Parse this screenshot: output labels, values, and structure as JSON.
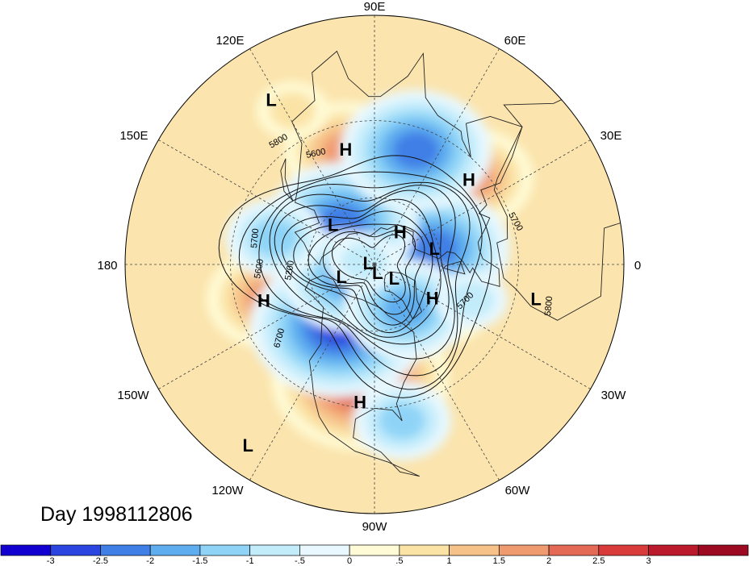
{
  "map": {
    "projection": "north-polar-stereographic",
    "shading": "anomaly",
    "contours": "geopotential-height",
    "lon_labels": [
      {
        "lon": 90,
        "text": "90E"
      },
      {
        "lon": 60,
        "text": "60E"
      },
      {
        "lon": 30,
        "text": "30E"
      },
      {
        "lon": 0,
        "text": "0"
      },
      {
        "lon": -30,
        "text": "30W"
      },
      {
        "lon": -60,
        "text": "60W"
      },
      {
        "lon": -90,
        "text": "90W"
      },
      {
        "lon": -120,
        "text": "120W"
      },
      {
        "lon": -150,
        "text": "150W"
      },
      {
        "lon": 180,
        "text": "180"
      },
      {
        "lon": 150,
        "text": "150E"
      },
      {
        "lon": 120,
        "text": "120E"
      }
    ],
    "latitude_circles": [
      30,
      60
    ],
    "meridian_step_deg": 30,
    "pressure_systems": [
      {
        "type": "L",
        "text": "L",
        "lon": 122,
        "lat": 14
      },
      {
        "type": "H",
        "text": "H",
        "lon": 104,
        "lat": 39
      },
      {
        "type": "H",
        "text": "H",
        "lon": 42,
        "lat": 36
      },
      {
        "type": "H",
        "text": "H",
        "lon": 52,
        "lat": 71
      },
      {
        "type": "L",
        "text": "L",
        "lon": 136,
        "lat": 64
      },
      {
        "type": "L",
        "text": "L",
        "lon": 15,
        "lat": 62
      },
      {
        "type": "L",
        "text": "L",
        "lon": 165,
        "lat": 87
      },
      {
        "type": "L",
        "text": "L",
        "lon": -160,
        "lat": 74
      },
      {
        "type": "L",
        "text": "L",
        "lon": -35,
        "lat": 79
      },
      {
        "type": "L",
        "text": "L",
        "lon": -70,
        "lat": 86
      },
      {
        "type": "H",
        "text": "H",
        "lon": -162,
        "lat": 40
      },
      {
        "type": "H",
        "text": "H",
        "lon": -30,
        "lat": 60
      },
      {
        "type": "H",
        "text": "H",
        "lon": -96,
        "lat": 32
      },
      {
        "type": "L",
        "text": "L",
        "lon": -125,
        "lat": 7
      },
      {
        "type": "L",
        "text": "L",
        "lon": -12,
        "lat": 23
      }
    ],
    "contour_labels": [
      "5800",
      "5600",
      "5700",
      "5600",
      "5200",
      "6700",
      "5700",
      "5800",
      "5700"
    ],
    "anomaly_centers": [
      {
        "lon": -97,
        "lat": 40,
        "value": 2.6
      },
      {
        "lon": -162,
        "lat": 42,
        "value": 1.9
      },
      {
        "lon": 104,
        "lat": 40,
        "value": 1.6
      },
      {
        "lon": 42,
        "lat": 35,
        "value": 1.8
      },
      {
        "lon": 52,
        "lat": 72,
        "value": 1.5
      },
      {
        "lon": -30,
        "lat": 60,
        "value": 1.7
      },
      {
        "lon": 118,
        "lat": 20,
        "value": 1.0
      },
      {
        "lon": -120,
        "lat": 58,
        "value": -2.7
      },
      {
        "lon": 15,
        "lat": 62,
        "value": -2.2
      },
      {
        "lon": 128,
        "lat": 66,
        "value": -2.2
      },
      {
        "lon": -150,
        "lat": 75,
        "value": -1.8
      },
      {
        "lon": 70,
        "lat": 38,
        "value": -2.4
      },
      {
        "lon": -80,
        "lat": 25,
        "value": -1.5
      },
      {
        "lon": -55,
        "lat": 65,
        "value": -1.6
      },
      {
        "lon": 165,
        "lat": 45,
        "value": -1.2
      },
      {
        "lon": -20,
        "lat": 45,
        "value": -0.9
      },
      {
        "lon": 165,
        "lat": 85,
        "value": -0.7
      }
    ]
  },
  "title": {
    "day_label": "Day 1998112806"
  },
  "colorbar": {
    "colors": [
      "#1100cf",
      "#2a45e0",
      "#3f7fe6",
      "#5eaeef",
      "#8fd4f7",
      "#c3ecfb",
      "#e8f8fe",
      "#fffbd6",
      "#fbe3a6",
      "#f6c28a",
      "#f09a70",
      "#e56a56",
      "#d93a3a",
      "#bb1a2c",
      "#9b0a20"
    ],
    "labels": [
      "-3",
      "-2.5",
      "-2",
      "-1.5",
      "-1",
      "-.5",
      "0",
      ".5",
      "1",
      "1.5",
      "2",
      "2.5",
      "3"
    ]
  }
}
